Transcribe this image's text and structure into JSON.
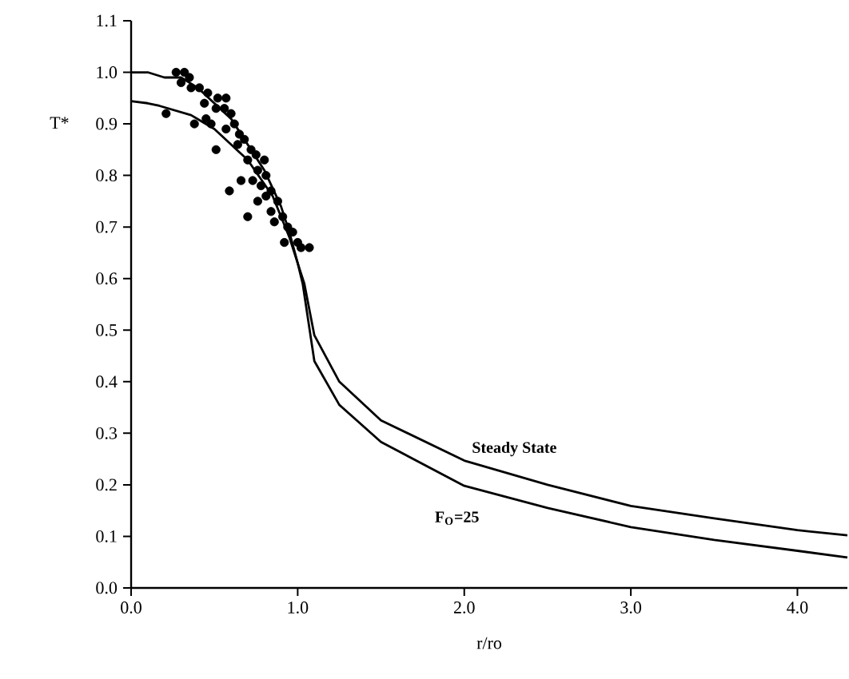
{
  "chart_data": {
    "type": "line",
    "xlabel": "r/ro",
    "ylabel": "T*",
    "xlim": [
      0,
      4.3
    ],
    "ylim": [
      0,
      1.1
    ],
    "xticks": [
      {
        "value": 0,
        "label": "0.0"
      },
      {
        "value": 1,
        "label": "1.0"
      },
      {
        "value": 2,
        "label": "2.0"
      },
      {
        "value": 3,
        "label": "3.0"
      },
      {
        "value": 4,
        "label": "4.0"
      }
    ],
    "yticks": [
      {
        "value": 0,
        "label": "0.0"
      },
      0.1,
      0.2,
      0.3,
      0.4,
      0.5,
      0.6,
      0.7,
      0.8,
      0.9,
      {
        "value": 1,
        "label": "1.0"
      },
      1.1
    ],
    "grid": false,
    "series": [
      {
        "color": "#000000",
        "marker": "none",
        "x": [
          0,
          0.1,
          0.2,
          0.3,
          0.4,
          0.6,
          0.8,
          0.9,
          0.95,
          1.0,
          1.04,
          1.1,
          1.25,
          1.5,
          2.0,
          2.5,
          3.0,
          3.5,
          4.0,
          4.3
        ],
        "values": [
          1.0,
          1.0,
          0.99,
          0.99,
          0.97,
          0.91,
          0.81,
          0.74,
          0.69,
          0.63,
          0.59,
          0.49,
          0.4,
          0.325,
          0.247,
          0.2,
          0.159,
          0.135,
          0.112,
          0.102
        ]
      },
      {
        "color": "#000000",
        "marker": "none",
        "x": [
          0,
          0.1,
          0.17,
          0.36,
          0.5,
          0.7,
          0.85,
          0.95,
          1.0,
          1.03,
          1.1,
          1.25,
          1.5,
          2.0,
          2.5,
          3.0,
          3.5,
          4.0,
          4.3
        ],
        "values": [
          0.944,
          0.94,
          0.935,
          0.917,
          0.89,
          0.83,
          0.76,
          0.68,
          0.63,
          0.59,
          0.44,
          0.355,
          0.283,
          0.198,
          0.155,
          0.118,
          0.093,
          0.072,
          0.059
        ]
      },
      {
        "type": "scatter",
        "color": "#000000",
        "marker": "circle",
        "x": [
          0.27,
          0.32,
          0.35,
          0.3,
          0.36,
          0.41,
          0.46,
          0.52,
          0.57,
          0.44,
          0.51,
          0.56,
          0.6,
          0.62,
          0.57,
          0.65,
          0.68,
          0.64,
          0.72,
          0.75,
          0.8,
          0.7,
          0.76,
          0.81,
          0.73,
          0.78,
          0.84,
          0.81,
          0.88,
          0.76,
          0.84,
          0.91,
          0.86,
          0.94,
          0.97,
          0.92,
          1.0,
          1.02,
          0.51,
          0.66,
          0.59,
          0.7,
          0.48,
          0.38,
          1.07,
          0.21,
          0.45
        ],
        "values": [
          1.0,
          1.0,
          0.99,
          0.98,
          0.97,
          0.97,
          0.96,
          0.95,
          0.95,
          0.94,
          0.93,
          0.93,
          0.92,
          0.9,
          0.89,
          0.88,
          0.87,
          0.86,
          0.85,
          0.84,
          0.83,
          0.83,
          0.81,
          0.8,
          0.79,
          0.78,
          0.77,
          0.76,
          0.75,
          0.75,
          0.73,
          0.72,
          0.71,
          0.7,
          0.69,
          0.67,
          0.67,
          0.66,
          0.85,
          0.79,
          0.77,
          0.72,
          0.9,
          0.9,
          0.66,
          0.92,
          0.91
        ]
      }
    ],
    "annotations": [
      "Steady State",
      "F$_{O}$=25"
    ]
  }
}
